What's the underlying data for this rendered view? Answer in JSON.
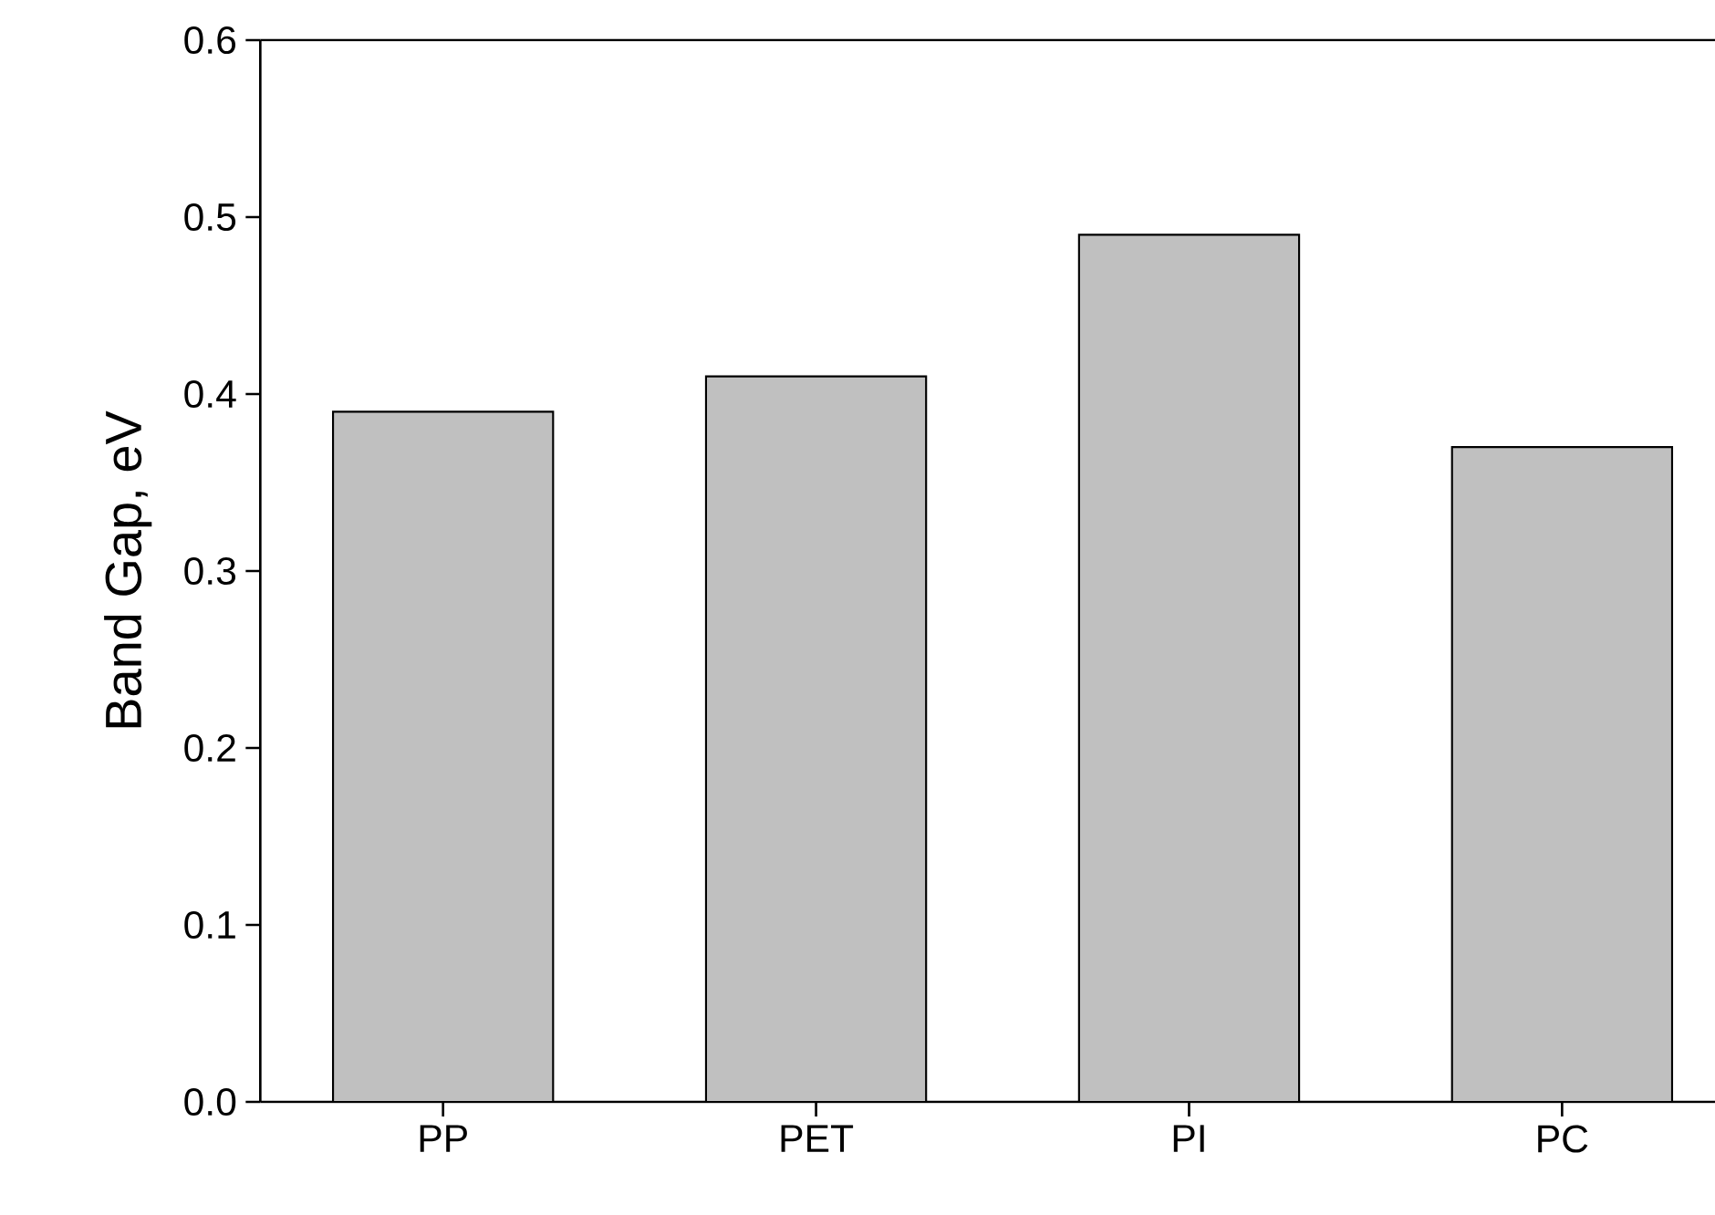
{
  "chart_data": {
    "type": "bar",
    "ylabel": "Band Gap, eV",
    "categories": [
      "PP",
      "PET",
      "PI",
      "PC"
    ],
    "values": [
      0.39,
      0.41,
      0.49,
      0.37
    ],
    "color": "#c0c0c0",
    "ylim": [
      0,
      0.6
    ],
    "yticks": [
      {
        "value": 0,
        "label": "0.0"
      },
      {
        "value": 0.1,
        "label": "0.1"
      },
      {
        "value": 0.2,
        "label": "0.2"
      },
      {
        "value": 0.3,
        "label": "0.3"
      },
      {
        "value": 0.4,
        "label": "0.4"
      },
      {
        "value": 0.5,
        "label": "0.5"
      },
      {
        "value": 0.6,
        "label": "0.6"
      }
    ],
    "grid": false
  }
}
